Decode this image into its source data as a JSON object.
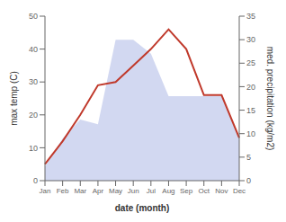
{
  "chart_data": {
    "type": "line",
    "xlabel": "date (month)",
    "ylabel": "max temp (C)",
    "y2label": "med. precipitation (kg/m2)",
    "categories": [
      "Jan",
      "Feb",
      "Mar",
      "Apr",
      "May",
      "Jun",
      "Jul",
      "Aug",
      "Sep",
      "Oct",
      "Nov",
      "Dec"
    ],
    "series": [
      {
        "type": "area",
        "axis": "y2",
        "color": "#adb8e6",
        "values": [
          3,
          9,
          13,
          12,
          30,
          30,
          27,
          18,
          18,
          18,
          18,
          9
        ]
      },
      {
        "type": "line",
        "axis": "y",
        "color": "#c0392b",
        "values": [
          5,
          12,
          20,
          29,
          30,
          35,
          40,
          46,
          40,
          26,
          26,
          13
        ]
      }
    ],
    "ylim": [
      0,
      50
    ],
    "yticks": [
      0,
      10,
      20,
      30,
      40,
      50
    ],
    "y2lim": [
      0,
      35
    ],
    "y2ticks": [
      0,
      5,
      10,
      15,
      20,
      25,
      30,
      35
    ]
  }
}
